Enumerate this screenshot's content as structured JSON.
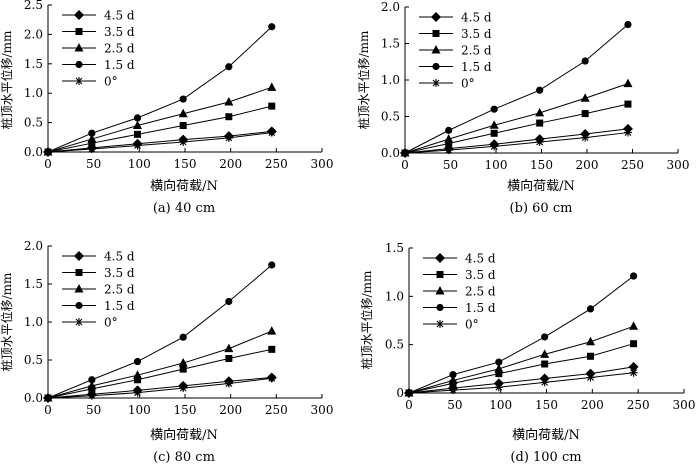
{
  "chart_data": [
    {
      "type": "line",
      "panel_label": "(a) 40 cm",
      "xlabel": "横向荷载/N",
      "ylabel": "桩顶水平位移/mm",
      "xlim": [
        0,
        300
      ],
      "ylim": [
        0,
        2.5
      ],
      "x_ticks": [
        "0",
        "50",
        "100",
        "150",
        "200",
        "250",
        "300"
      ],
      "y_ticks": [
        "0.0",
        "0.5",
        "1.0",
        "1.5",
        "2.0",
        "2.5"
      ],
      "y_tick_values": [
        0,
        0.5,
        1.0,
        1.5,
        2.0,
        2.5
      ],
      "legend_position": "top-left",
      "x": [
        0,
        48,
        98,
        148,
        198,
        245
      ],
      "series": [
        {
          "name": "4.5 d",
          "marker": "diamond",
          "values": [
            0,
            0.07,
            0.14,
            0.21,
            0.27,
            0.35
          ]
        },
        {
          "name": "3.5 d",
          "marker": "square",
          "values": [
            0,
            0.15,
            0.3,
            0.45,
            0.6,
            0.78
          ]
        },
        {
          "name": "2.5 d",
          "marker": "triangle",
          "values": [
            0,
            0.22,
            0.45,
            0.65,
            0.85,
            1.1
          ]
        },
        {
          "name": "1.5 d",
          "marker": "circle",
          "values": [
            0,
            0.32,
            0.58,
            0.9,
            1.45,
            2.13
          ]
        },
        {
          "name": "0°",
          "marker": "star",
          "values": [
            0,
            0.05,
            0.11,
            0.17,
            0.24,
            0.33
          ]
        }
      ]
    },
    {
      "type": "line",
      "panel_label": "(b) 60 cm",
      "xlabel": "横向荷载/N",
      "ylabel": "桩顶水平位移/mm",
      "xlim": [
        0,
        300
      ],
      "ylim": [
        0,
        2.0
      ],
      "x_ticks": [
        "0",
        "50",
        "100",
        "150",
        "200",
        "250",
        "300"
      ],
      "y_ticks": [
        "0.0",
        "0.5",
        "1.0",
        "1.5",
        "2.0"
      ],
      "y_tick_values": [
        0,
        0.5,
        1.0,
        1.5,
        2.0
      ],
      "legend_position": "top-left",
      "x": [
        0,
        48,
        98,
        148,
        198,
        245
      ],
      "series": [
        {
          "name": "4.5 d",
          "marker": "diamond",
          "values": [
            0,
            0.06,
            0.12,
            0.19,
            0.26,
            0.33
          ]
        },
        {
          "name": "3.5 d",
          "marker": "square",
          "values": [
            0,
            0.13,
            0.27,
            0.41,
            0.54,
            0.67
          ]
        },
        {
          "name": "2.5 d",
          "marker": "triangle",
          "values": [
            0,
            0.19,
            0.38,
            0.55,
            0.75,
            0.95
          ]
        },
        {
          "name": "1.5 d",
          "marker": "circle",
          "values": [
            0,
            0.31,
            0.6,
            0.86,
            1.26,
            1.76
          ]
        },
        {
          "name": "0°",
          "marker": "star",
          "values": [
            0,
            0.04,
            0.09,
            0.15,
            0.21,
            0.28
          ]
        }
      ]
    },
    {
      "type": "line",
      "panel_label": "(c) 80 cm",
      "xlabel": "横向荷载/N",
      "ylabel": "桩顶水平位移/mm",
      "xlim": [
        0,
        300
      ],
      "ylim": [
        0,
        2.0
      ],
      "x_ticks": [
        "0",
        "50",
        "100",
        "150",
        "200",
        "250",
        "300"
      ],
      "y_ticks": [
        "0.0",
        "0.5",
        "1.0",
        "1.5",
        "2.0"
      ],
      "y_tick_values": [
        0,
        0.5,
        1.0,
        1.5,
        2.0
      ],
      "legend_position": "top-left",
      "x": [
        0,
        48,
        98,
        148,
        198,
        245
      ],
      "series": [
        {
          "name": "4.5 d",
          "marker": "diamond",
          "values": [
            0,
            0.05,
            0.1,
            0.16,
            0.22,
            0.27
          ]
        },
        {
          "name": "3.5 d",
          "marker": "square",
          "values": [
            0,
            0.12,
            0.24,
            0.38,
            0.52,
            0.64
          ]
        },
        {
          "name": "2.5 d",
          "marker": "triangle",
          "values": [
            0,
            0.16,
            0.3,
            0.46,
            0.65,
            0.88
          ]
        },
        {
          "name": "1.5 d",
          "marker": "circle",
          "values": [
            0,
            0.24,
            0.48,
            0.8,
            1.27,
            1.75
          ]
        },
        {
          "name": "0°",
          "marker": "star",
          "values": [
            0,
            0.03,
            0.07,
            0.13,
            0.19,
            0.26
          ]
        }
      ]
    },
    {
      "type": "line",
      "panel_label": "(d) 100 cm",
      "xlabel": "横向荷载/N",
      "ylabel": "桩顶水平位移/mm",
      "xlim": [
        0,
        300
      ],
      "ylim": [
        0,
        1.5
      ],
      "x_ticks": [
        "0",
        "50",
        "100",
        "150",
        "200",
        "250",
        "300"
      ],
      "y_ticks": [
        "0",
        "0.5",
        "1.0",
        "1.5"
      ],
      "y_tick_values": [
        0,
        0.5,
        1.0,
        1.5
      ],
      "legend_position": "top-left",
      "x": [
        0,
        48,
        98,
        148,
        198,
        245
      ],
      "series": [
        {
          "name": "4.5 d",
          "marker": "diamond",
          "values": [
            0,
            0.05,
            0.1,
            0.15,
            0.2,
            0.27
          ]
        },
        {
          "name": "3.5 d",
          "marker": "square",
          "values": [
            0,
            0.1,
            0.2,
            0.3,
            0.38,
            0.51
          ]
        },
        {
          "name": "2.5 d",
          "marker": "triangle",
          "values": [
            0,
            0.13,
            0.25,
            0.4,
            0.53,
            0.69
          ]
        },
        {
          "name": "1.5 d",
          "marker": "circle",
          "values": [
            0,
            0.19,
            0.32,
            0.58,
            0.87,
            1.21
          ]
        },
        {
          "name": "0°",
          "marker": "star",
          "values": [
            0,
            0.03,
            0.06,
            0.11,
            0.16,
            0.21
          ]
        }
      ]
    }
  ]
}
